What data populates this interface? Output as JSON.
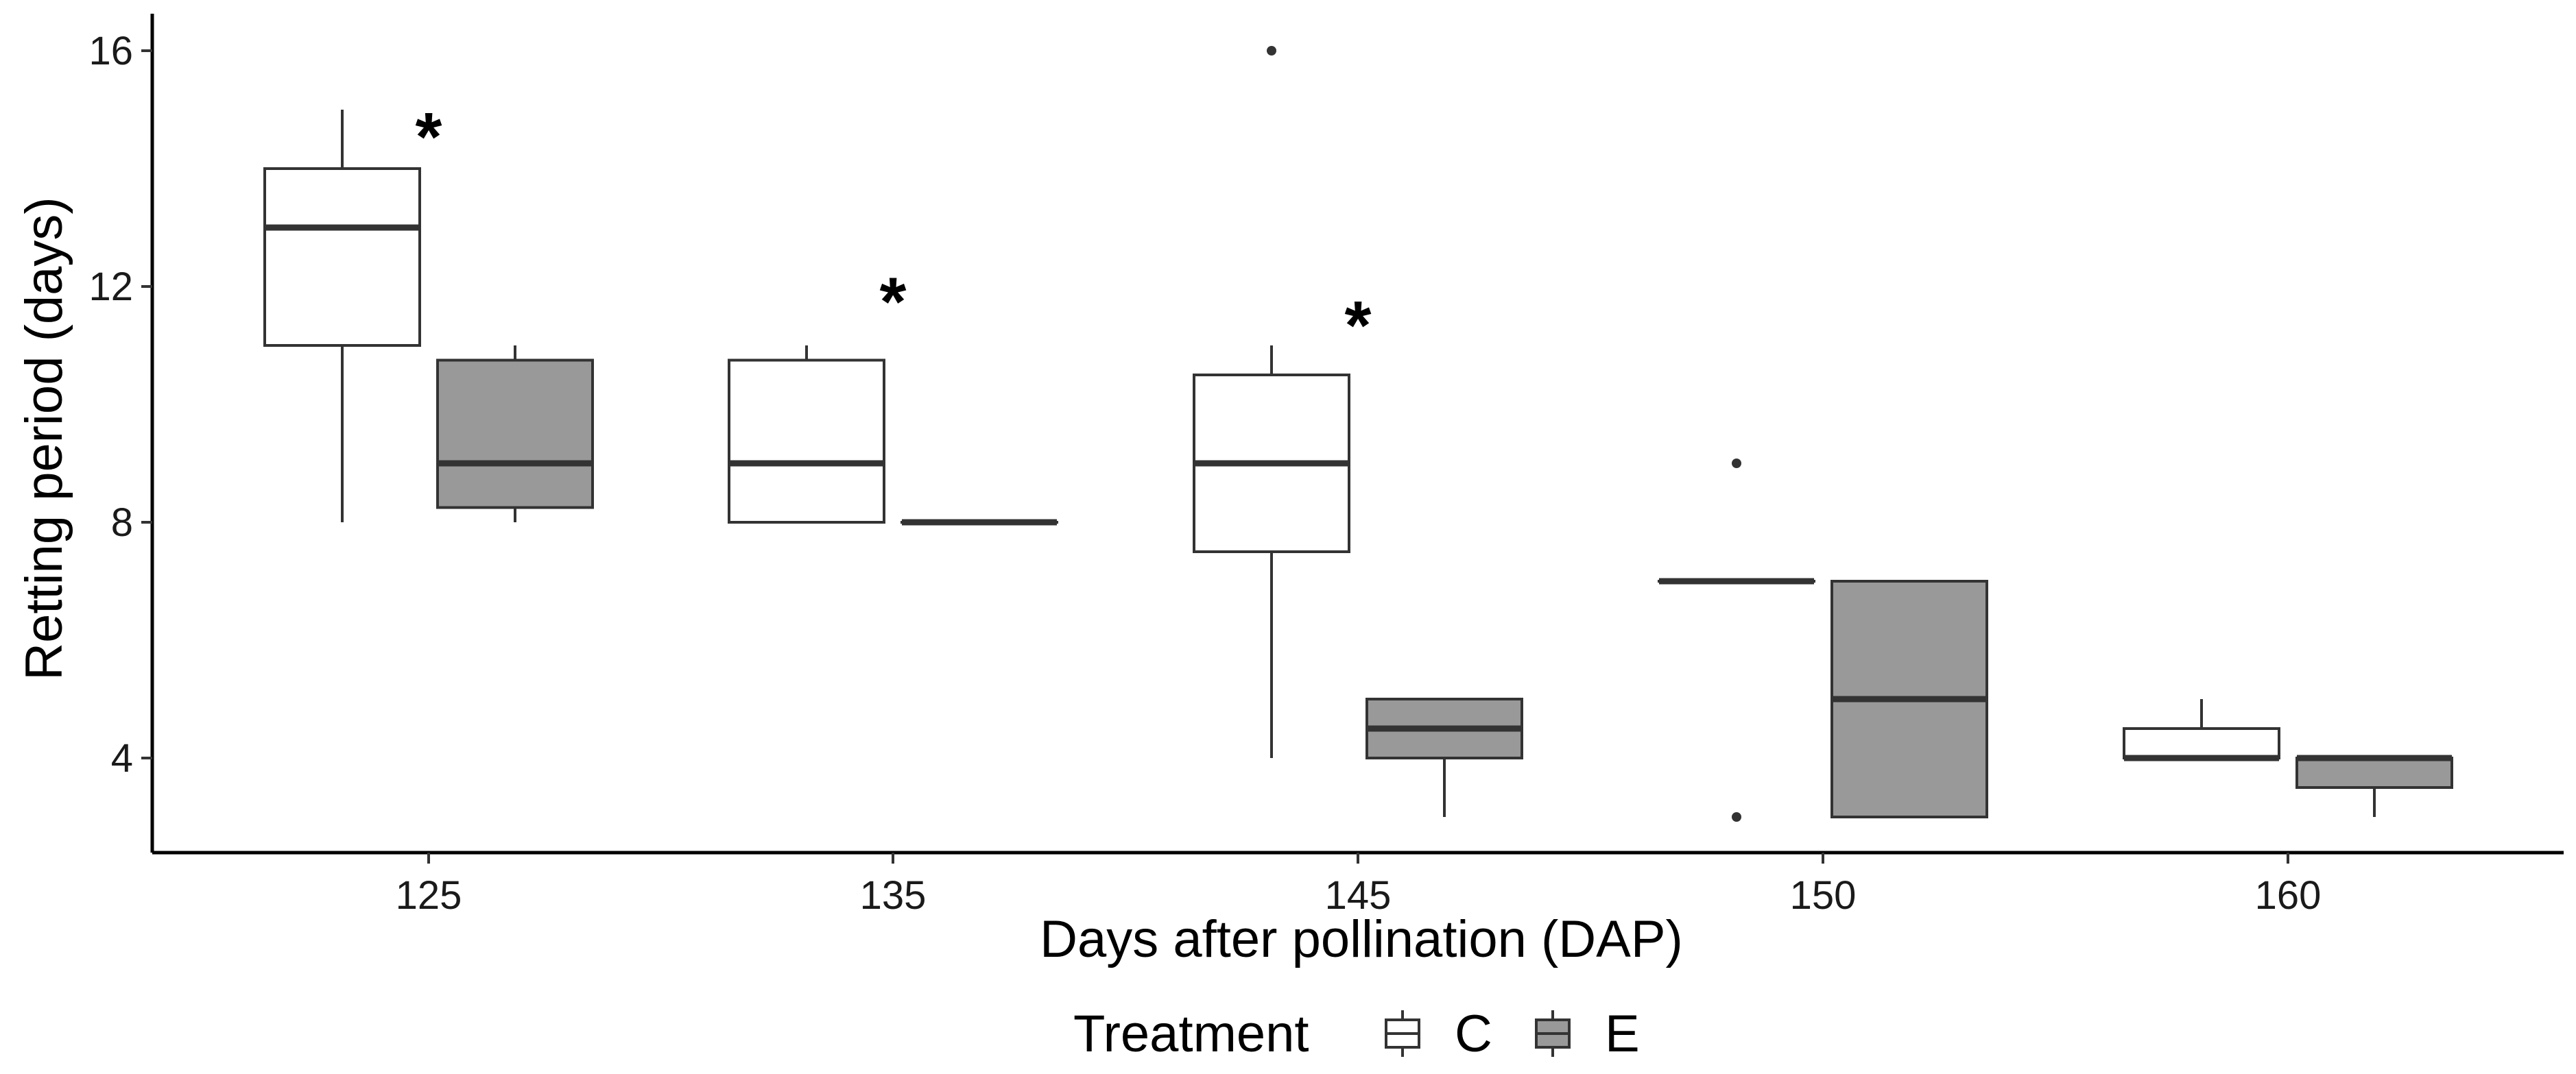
{
  "chart_data": {
    "type": "boxplot",
    "xlabel": "Days after pollination (DAP)",
    "ylabel": "Retting period (days)",
    "ylim": [
      2.4,
      16.7
    ],
    "yticks": [
      4,
      8,
      12,
      16
    ],
    "categories": [
      "125",
      "135",
      "145",
      "150",
      "160"
    ],
    "legend": {
      "title": "Treatment",
      "position": "bottom",
      "entries": [
        {
          "key": "C",
          "label": "C",
          "fill": "#ffffff"
        },
        {
          "key": "E",
          "label": "E",
          "fill": "#999999"
        }
      ]
    },
    "series": [
      {
        "name": "C",
        "fill": "#ffffff",
        "boxes": [
          {
            "category": "125",
            "whisker_low": 8,
            "q1": 11,
            "median": 13,
            "q3": 14,
            "whisker_high": 15,
            "outliers": []
          },
          {
            "category": "135",
            "whisker_low": 8,
            "q1": 8,
            "median": 9,
            "q3": 10.75,
            "whisker_high": 11,
            "outliers": []
          },
          {
            "category": "145",
            "whisker_low": 4,
            "q1": 7.5,
            "median": 9,
            "q3": 10.5,
            "whisker_high": 11,
            "outliers": [
              16
            ]
          },
          {
            "category": "150",
            "whisker_low": 7,
            "q1": 7,
            "median": 7,
            "q3": 7,
            "whisker_high": 7,
            "outliers": [
              9,
              3
            ]
          },
          {
            "category": "160",
            "whisker_low": 4,
            "q1": 4,
            "median": 4,
            "q3": 4.5,
            "whisker_high": 5,
            "outliers": []
          }
        ]
      },
      {
        "name": "E",
        "fill": "#999999",
        "boxes": [
          {
            "category": "125",
            "whisker_low": 8,
            "q1": 8.25,
            "median": 9,
            "q3": 10.75,
            "whisker_high": 11,
            "outliers": []
          },
          {
            "category": "135",
            "whisker_low": 8,
            "q1": 8,
            "median": 8,
            "q3": 8,
            "whisker_high": 8,
            "outliers": []
          },
          {
            "category": "145",
            "whisker_low": 3,
            "q1": 4,
            "median": 4.5,
            "q3": 5,
            "whisker_high": 5,
            "outliers": []
          },
          {
            "category": "150",
            "whisker_low": 3,
            "q1": 3,
            "median": 5,
            "q3": 7,
            "whisker_high": 7,
            "outliers": []
          },
          {
            "category": "160",
            "whisker_low": 3,
            "q1": 3.5,
            "median": 4,
            "q3": 4,
            "whisker_high": 4,
            "outliers": []
          }
        ]
      }
    ],
    "annotations": [
      {
        "category": "125",
        "text": "*",
        "y": 14.7
      },
      {
        "category": "135",
        "text": "*",
        "y": 11.9
      },
      {
        "category": "145",
        "text": "*",
        "y": 11.5
      }
    ],
    "grid": false,
    "colors": {
      "box_stroke": "#333333",
      "axis": "#000000"
    }
  }
}
